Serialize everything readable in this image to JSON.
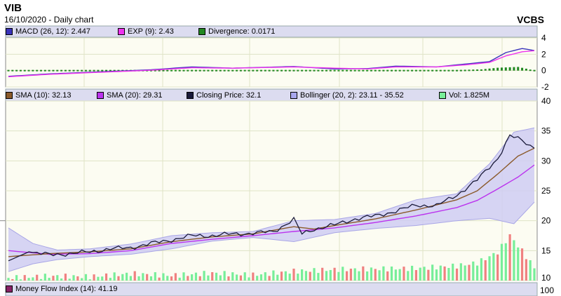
{
  "header": {
    "symbol": "VIB",
    "date_label": "16/10/2020 - Daily chart",
    "brand": "VCBS"
  },
  "colors": {
    "background": "#ffffff",
    "panel_bg": "#fcfcf2",
    "legend_bg": "#dcdcf0",
    "grid": "#dfe3c6",
    "band_fill": "#cfcdf3",
    "band_edge": "#a9a6e6"
  },
  "macd_panel": {
    "legend": [
      {
        "label": "MACD (26, 12): 2.447",
        "color": "#3a33bb"
      },
      {
        "label": "EXP (9): 2.43",
        "color": "#ee33ee"
      },
      {
        "label": "Divergence: 0.0171",
        "color": "#228822"
      }
    ],
    "y_ticks": [
      "4",
      "2",
      "0",
      "-2"
    ]
  },
  "price_panel": {
    "legend": [
      {
        "label": "SMA (10): 32.13",
        "color": "#8b5a2b"
      },
      {
        "label": "SMA (20): 29.31",
        "color": "#bb33ee"
      },
      {
        "label": "Closing Price: 32.1",
        "color": "#1a1a3a"
      },
      {
        "label": "Bollinger (20, 2): 23.11 - 35.52",
        "color": "#a8a6ee"
      },
      {
        "label": "Vol: 1.825M",
        "color": "#77ee99"
      }
    ],
    "y_ticks": [
      "40",
      "35",
      "30",
      "25",
      "20",
      "15",
      "10"
    ]
  },
  "mfi_panel": {
    "legend": [
      {
        "label": "Money Flow Index (14): 41.19",
        "color": "#882266"
      }
    ],
    "y_ticks": [
      "100"
    ]
  },
  "chart_data": [
    {
      "type": "line",
      "title": "MACD",
      "ylim": [
        -2,
        4
      ],
      "x_count": 130,
      "series": [
        {
          "name": "MACD (26, 12)",
          "anchors": [
            [
              0,
              -0.7
            ],
            [
              10,
              -0.4
            ],
            [
              20,
              -0.2
            ],
            [
              35,
              0.1
            ],
            [
              45,
              0.45
            ],
            [
              55,
              0.3
            ],
            [
              70,
              0.5
            ],
            [
              80,
              0.2
            ],
            [
              88,
              0.25
            ],
            [
              95,
              0.55
            ],
            [
              105,
              0.45
            ],
            [
              112,
              0.8
            ],
            [
              118,
              1.1
            ],
            [
              122,
              2.2
            ],
            [
              126,
              2.7
            ],
            [
              129,
              2.45
            ]
          ]
        },
        {
          "name": "EXP (9)",
          "anchors": [
            [
              0,
              -0.75
            ],
            [
              10,
              -0.45
            ],
            [
              20,
              -0.25
            ],
            [
              35,
              0.05
            ],
            [
              45,
              0.35
            ],
            [
              55,
              0.3
            ],
            [
              70,
              0.45
            ],
            [
              80,
              0.3
            ],
            [
              88,
              0.2
            ],
            [
              95,
              0.45
            ],
            [
              105,
              0.45
            ],
            [
              112,
              0.7
            ],
            [
              118,
              1.0
            ],
            [
              122,
              1.8
            ],
            [
              126,
              2.3
            ],
            [
              129,
              2.43
            ]
          ]
        },
        {
          "name": "Divergence",
          "anchors": [
            [
              0,
              0.05
            ],
            [
              10,
              0.04
            ],
            [
              20,
              0.06
            ],
            [
              30,
              0.03
            ],
            [
              40,
              0.07
            ],
            [
              50,
              0.02
            ],
            [
              60,
              0.05
            ],
            [
              70,
              0.04
            ],
            [
              78,
              -0.12
            ],
            [
              88,
              0.04
            ],
            [
              100,
              0.05
            ],
            [
              110,
              0.08
            ],
            [
              116,
              0.15
            ],
            [
              120,
              0.35
            ],
            [
              125,
              0.45
            ],
            [
              129,
              0.02
            ]
          ]
        }
      ]
    },
    {
      "type": "line",
      "title": "Price",
      "ylim": [
        10,
        40
      ],
      "x_count": 130,
      "series": [
        {
          "name": "Closing Price",
          "anchors": [
            [
              0,
              13.3
            ],
            [
              5,
              14.8
            ],
            [
              10,
              14.3
            ],
            [
              15,
              14.5
            ],
            [
              20,
              14.8
            ],
            [
              25,
              15.3
            ],
            [
              30,
              15.5
            ],
            [
              35,
              16.2
            ],
            [
              40,
              16.8
            ],
            [
              45,
              17.5
            ],
            [
              50,
              17.5
            ],
            [
              55,
              17.8
            ],
            [
              60,
              17.9
            ],
            [
              65,
              18.2
            ],
            [
              70,
              20.2
            ],
            [
              72,
              17.8
            ],
            [
              75,
              18.6
            ],
            [
              80,
              19.3
            ],
            [
              85,
              20.3
            ],
            [
              90,
              20.8
            ],
            [
              95,
              21.6
            ],
            [
              100,
              22.6
            ],
            [
              105,
              22.5
            ],
            [
              110,
              24.3
            ],
            [
              115,
              26.8
            ],
            [
              120,
              30.4
            ],
            [
              123,
              34.2
            ],
            [
              126,
              33.4
            ],
            [
              129,
              32.1
            ]
          ]
        },
        {
          "name": "SMA (10)",
          "anchors": [
            [
              0,
              14.0
            ],
            [
              10,
              14.5
            ],
            [
              20,
              14.8
            ],
            [
              30,
              15.3
            ],
            [
              40,
              16.5
            ],
            [
              50,
              17.3
            ],
            [
              60,
              17.8
            ],
            [
              70,
              19.0
            ],
            [
              75,
              18.6
            ],
            [
              80,
              19.2
            ],
            [
              90,
              20.3
            ],
            [
              100,
              21.8
            ],
            [
              110,
              23.5
            ],
            [
              115,
              25.0
            ],
            [
              120,
              27.8
            ],
            [
              125,
              30.8
            ],
            [
              129,
              32.13
            ]
          ]
        },
        {
          "name": "SMA (20)",
          "anchors": [
            [
              0,
              15.0
            ],
            [
              10,
              14.4
            ],
            [
              20,
              14.5
            ],
            [
              30,
              15.0
            ],
            [
              40,
              16.2
            ],
            [
              50,
              16.9
            ],
            [
              60,
              17.5
            ],
            [
              70,
              18.2
            ],
            [
              80,
              18.8
            ],
            [
              90,
              19.7
            ],
            [
              100,
              20.8
            ],
            [
              110,
              22.2
            ],
            [
              115,
              23.4
            ],
            [
              120,
              25.3
            ],
            [
              125,
              27.3
            ],
            [
              129,
              29.31
            ]
          ]
        },
        {
          "name": "Bollinger Upper",
          "anchors": [
            [
              0,
              18.8
            ],
            [
              6,
              16.2
            ],
            [
              12,
              15.1
            ],
            [
              20,
              15.3
            ],
            [
              30,
              16.1
            ],
            [
              40,
              17.5
            ],
            [
              50,
              18.0
            ],
            [
              60,
              18.2
            ],
            [
              70,
              20.0
            ],
            [
              80,
              20.2
            ],
            [
              90,
              21.2
            ],
            [
              100,
              23.5
            ],
            [
              110,
              24.5
            ],
            [
              118,
              29.5
            ],
            [
              124,
              34.8
            ],
            [
              129,
              35.52
            ]
          ]
        },
        {
          "name": "Bollinger Lower",
          "anchors": [
            [
              0,
              11.5
            ],
            [
              6,
              12.8
            ],
            [
              12,
              13.5
            ],
            [
              20,
              14.0
            ],
            [
              30,
              14.4
            ],
            [
              40,
              15.3
            ],
            [
              50,
              16.6
            ],
            [
              60,
              17.2
            ],
            [
              70,
              16.5
            ],
            [
              80,
              18.0
            ],
            [
              90,
              18.7
            ],
            [
              100,
              19.2
            ],
            [
              110,
              20.0
            ],
            [
              118,
              20.4
            ],
            [
              124,
              19.5
            ],
            [
              129,
              23.11
            ]
          ]
        },
        {
          "name": "Vol",
          "anchors": [
            [
              0,
              10.3
            ],
            [
              10,
              10.6
            ],
            [
              20,
              10.5
            ],
            [
              30,
              11.0
            ],
            [
              40,
              10.7
            ],
            [
              50,
              11.1
            ],
            [
              60,
              10.8
            ],
            [
              70,
              11.4
            ],
            [
              80,
              11.7
            ],
            [
              90,
              11.8
            ],
            [
              100,
              11.9
            ],
            [
              110,
              12.3
            ],
            [
              115,
              12.8
            ],
            [
              120,
              14.6
            ],
            [
              123,
              17.4
            ],
            [
              126,
              14.8
            ],
            [
              129,
              12.0
            ]
          ]
        }
      ]
    }
  ]
}
